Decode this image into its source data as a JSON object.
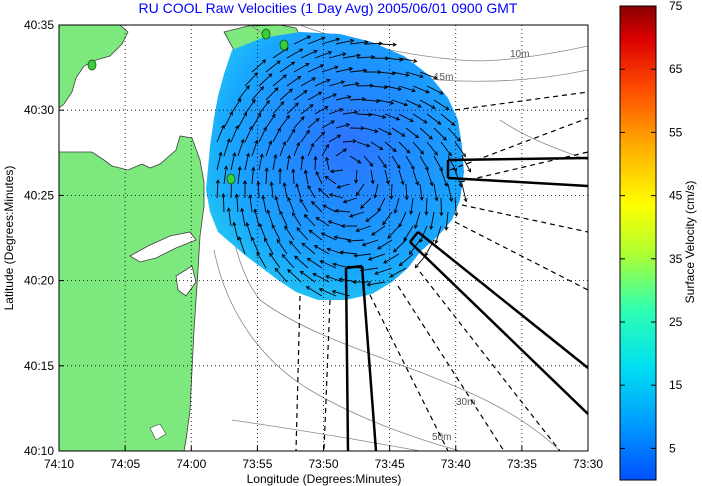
{
  "chart_data": {
    "type": "vector-field-map",
    "title": "RU COOL Raw Velocities (1 Day Avg) 2005/06/01 0900 GMT",
    "xlabel": "Longitude (Degrees:Minutes)",
    "ylabel": "Latitude (Degrees:Minutes)",
    "x_ticks": [
      "74:10",
      "74:05",
      "74:00",
      "73:55",
      "73:50",
      "73:45",
      "73:40",
      "73:35",
      "73:30"
    ],
    "y_ticks": [
      "40:35",
      "40:30",
      "40:25",
      "40:20",
      "40:15",
      "40:10"
    ],
    "xlim_minutes_west": [
      10,
      -30
    ],
    "ylim_minutes_north": [
      10,
      35
    ],
    "grid": "dotted",
    "contour_labels": [
      "10m",
      "15m",
      "30m",
      "50m"
    ],
    "colorbar": {
      "label": "Surface Velocity (cm/s)",
      "ticks": [
        5,
        15,
        25,
        35,
        45,
        55,
        65,
        75
      ],
      "range": [
        0,
        75
      ]
    },
    "colors": {
      "land": "#7de87d",
      "water": "#ffffff",
      "field_main": "#19a5ff",
      "field_core": "#2d79ff",
      "title": "#0000ff"
    },
    "radar_site_markers": 4
  }
}
